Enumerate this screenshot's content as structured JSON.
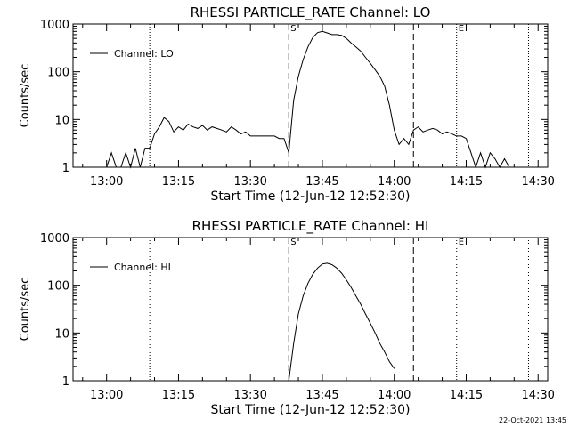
{
  "footer": {
    "timestamp": "22-Oct-2021 13:45"
  },
  "chart_data": [
    {
      "type": "line",
      "title": "RHESSI PARTICLE_RATE Channel: LO",
      "xlabel": "Start Time (12-Jun-12 12:52:30)",
      "ylabel": "Counts/sec",
      "yscale": "log",
      "ylim": [
        1,
        1000
      ],
      "yticks": [
        1,
        10,
        100,
        1000
      ],
      "ytick_labels": [
        "1",
        "10",
        "100",
        "1000"
      ],
      "xlim": [
        "12:53",
        "14:32"
      ],
      "xticks": [
        "13:00",
        "13:15",
        "13:30",
        "13:45",
        "14:00",
        "14:15",
        "14:30"
      ],
      "legend": {
        "label": "Channel: LO",
        "position": "top-left"
      },
      "markers": [
        {
          "time": "13:09",
          "style": "dotted",
          "label": ""
        },
        {
          "time": "13:38",
          "style": "dashed",
          "label": "S"
        },
        {
          "time": "14:04",
          "style": "dashed",
          "label": ""
        },
        {
          "time": "14:13",
          "style": "dotted",
          "label": "E"
        },
        {
          "time": "14:28",
          "style": "dotted",
          "label": ""
        }
      ],
      "series": [
        {
          "x": [
            "13:00",
            "13:01",
            "13:02",
            "13:03",
            "13:04",
            "13:05",
            "13:06",
            "13:07",
            "13:08",
            "13:09",
            "13:10",
            "13:11",
            "13:12",
            "13:13",
            "13:14",
            "13:15",
            "13:16",
            "13:17",
            "13:18",
            "13:19",
            "13:20",
            "13:21",
            "13:22",
            "13:23",
            "13:24",
            "13:25",
            "13:26",
            "13:27",
            "13:28",
            "13:29",
            "13:30",
            "13:31",
            "13:32",
            "13:33",
            "13:34",
            "13:35",
            "13:36",
            "13:37",
            "13:38",
            "13:39",
            "13:40",
            "13:41",
            "13:42",
            "13:43",
            "13:44",
            "13:45",
            "13:46",
            "13:47",
            "13:48",
            "13:49",
            "13:50",
            "13:51",
            "13:52",
            "13:53",
            "13:54",
            "13:55",
            "13:56",
            "13:57",
            "13:58",
            "13:59",
            "14:00",
            "14:01",
            "14:02",
            "14:03",
            "14:04",
            "14:05",
            "14:06",
            "14:07",
            "14:08",
            "14:09",
            "14:10",
            "14:11",
            "14:12",
            "14:13",
            "14:14",
            "14:15",
            "14:16",
            "14:17",
            "14:18",
            "14:19",
            "14:20",
            "14:21",
            "14:22",
            "14:23",
            "14:24"
          ],
          "y": [
            1.0,
            2.0,
            1.0,
            1.0,
            2.0,
            1.0,
            2.5,
            1.0,
            2.5,
            2.5,
            5.0,
            7.0,
            11.0,
            9.0,
            5.5,
            7.0,
            6.0,
            8.0,
            7.0,
            6.5,
            7.5,
            6.0,
            7.0,
            6.5,
            6.0,
            5.5,
            7.0,
            6.0,
            5.0,
            5.5,
            4.5,
            4.5,
            4.5,
            4.5,
            4.5,
            4.5,
            4.0,
            4.0,
            2.0,
            25.0,
            80.0,
            180.0,
            330.0,
            520.0,
            660.0,
            700.0,
            650.0,
            600.0,
            600.0,
            580.0,
            500.0,
            400.0,
            330.0,
            270.0,
            200.0,
            150.0,
            110.0,
            80.0,
            50.0,
            20.0,
            6.0,
            3.0,
            4.0,
            3.0,
            6.0,
            7.0,
            5.5,
            6.0,
            6.5,
            6.0,
            5.0,
            5.5,
            5.0,
            4.5,
            4.5,
            4.0,
            2.0,
            1.0,
            2.0,
            1.0,
            2.0,
            1.5,
            1.0,
            1.5,
            1.0
          ]
        }
      ]
    },
    {
      "type": "line",
      "title": "RHESSI PARTICLE_RATE Channel: HI",
      "xlabel": "Start Time (12-Jun-12 12:52:30)",
      "ylabel": "Counts/sec",
      "yscale": "log",
      "ylim": [
        1,
        1000
      ],
      "yticks": [
        1,
        10,
        100,
        1000
      ],
      "ytick_labels": [
        "1",
        "10",
        "100",
        "1000"
      ],
      "xlim": [
        "12:53",
        "14:32"
      ],
      "xticks": [
        "13:00",
        "13:15",
        "13:30",
        "13:45",
        "14:00",
        "14:15",
        "14:30"
      ],
      "legend": {
        "label": "Channel: HI",
        "position": "top-left"
      },
      "markers": [
        {
          "time": "13:09",
          "style": "dotted",
          "label": ""
        },
        {
          "time": "13:38",
          "style": "dashed",
          "label": "S"
        },
        {
          "time": "14:04",
          "style": "dashed",
          "label": ""
        },
        {
          "time": "14:13",
          "style": "dotted",
          "label": "E"
        },
        {
          "time": "14:28",
          "style": "dotted",
          "label": ""
        }
      ],
      "series": [
        {
          "x": [
            "13:38",
            "13:39",
            "13:40",
            "13:41",
            "13:42",
            "13:43",
            "13:44",
            "13:45",
            "13:46",
            "13:47",
            "13:48",
            "13:49",
            "13:50",
            "13:51",
            "13:52",
            "13:53",
            "13:54",
            "13:55",
            "13:56",
            "13:57",
            "13:58",
            "13:59",
            "14:00"
          ],
          "y": [
            1.0,
            6.0,
            25.0,
            60.0,
            110.0,
            170.0,
            230.0,
            280.0,
            290.0,
            270.0,
            230.0,
            180.0,
            130.0,
            90.0,
            60.0,
            40.0,
            25.0,
            16.0,
            10.0,
            6.0,
            4.0,
            2.5,
            1.8
          ]
        }
      ]
    }
  ]
}
